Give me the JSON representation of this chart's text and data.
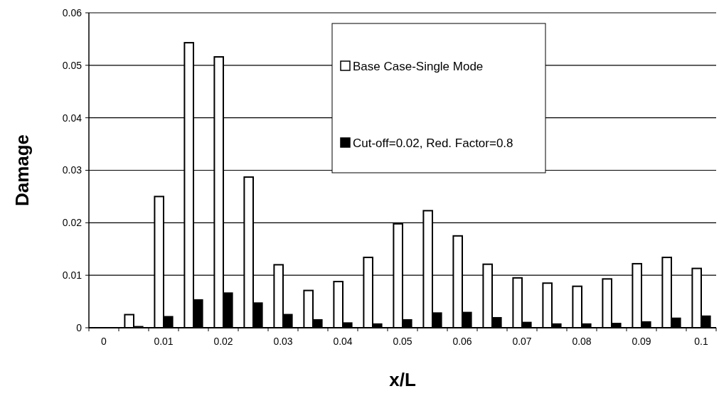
{
  "chart_data": {
    "type": "bar",
    "xlabel": "x/L",
    "ylabel": "Damage",
    "categories": [
      "0",
      null,
      "0.01",
      null,
      "0.02",
      null,
      "0.03",
      null,
      "0.04",
      null,
      "0.05",
      null,
      "0.06",
      null,
      "0.07",
      null,
      "0.08",
      null,
      "0.09",
      null,
      "0.1"
    ],
    "series": [
      {
        "name": "Base Case-Single Mode",
        "color": "#ffffff",
        "values": [
          0,
          0.0025,
          0.025,
          0.0543,
          0.0516,
          0.0287,
          0.012,
          0.0071,
          0.0088,
          0.0134,
          0.0198,
          0.0223,
          0.0175,
          0.0121,
          0.0095,
          0.0085,
          0.0079,
          0.0093,
          0.0122,
          0.0134,
          0.0113
        ]
      },
      {
        "name": "Cut-off=0.02, Red. Factor=0.8",
        "color": "#000000",
        "values": [
          0,
          0.0002,
          0.0021,
          0.0053,
          0.0066,
          0.0047,
          0.0025,
          0.0015,
          0.0009,
          0.0007,
          0.0015,
          0.0028,
          0.0029,
          0.0019,
          0.001,
          0.0007,
          0.0007,
          0.0008,
          0.0011,
          0.0018,
          0.0022
        ]
      }
    ],
    "ylim": [
      0,
      0.06
    ],
    "yticks": [
      0,
      0.01,
      0.02,
      0.03,
      0.04,
      0.05,
      0.06
    ],
    "grid": "y",
    "legend": "top right"
  }
}
